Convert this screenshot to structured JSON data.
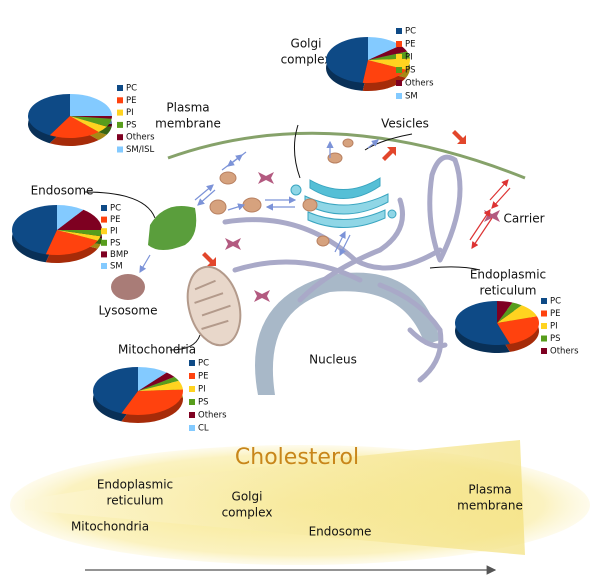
{
  "labels": [
    {
      "lines": [
        "Plasma",
        "membrane"
      ]
    },
    {
      "lines": [
        "Golgi",
        "complex"
      ]
    },
    {
      "lines": [
        "Vesicles"
      ]
    },
    {
      "lines": [
        "Endosome"
      ]
    },
    {
      "lines": [
        "Carrier"
      ]
    },
    {
      "lines": [
        "Endoplasmic",
        "reticulum"
      ]
    },
    {
      "lines": [
        "Lysosome"
      ]
    },
    {
      "lines": [
        "Mitochondria"
      ]
    },
    {
      "lines": [
        "Nucleus"
      ]
    }
  ],
  "pies": [
    {
      "series": [
        {
          "name": "PC",
          "color": "#0e4a86",
          "value": 42
        },
        {
          "name": "PE",
          "color": "#ff420e",
          "value": 20
        },
        {
          "name": "PI",
          "color": "#ffd320",
          "value": 5
        },
        {
          "name": "PS",
          "color": "#579d1c",
          "value": 6
        },
        {
          "name": "Others",
          "color": "#7e0021",
          "value": 2
        },
        {
          "name": "SM/ISL",
          "color": "#83caff",
          "value": 25
        }
      ]
    },
    {
      "series": [
        {
          "name": "PC",
          "color": "#0e4a86",
          "value": 48
        },
        {
          "name": "PE",
          "color": "#ff420e",
          "value": 20
        },
        {
          "name": "PI",
          "color": "#ffd320",
          "value": 8
        },
        {
          "name": "PS",
          "color": "#579d1c",
          "value": 5
        },
        {
          "name": "Others",
          "color": "#7e0021",
          "value": 5
        },
        {
          "name": "SM",
          "color": "#83caff",
          "value": 14
        }
      ]
    },
    {
      "series": [
        {
          "name": "PC",
          "color": "#0e4a86",
          "value": 46
        },
        {
          "name": "PE",
          "color": "#ff420e",
          "value": 22
        },
        {
          "name": "PI",
          "color": "#ffd320",
          "value": 3
        },
        {
          "name": "PS",
          "color": "#579d1c",
          "value": 4
        },
        {
          "name": "BMP",
          "color": "#7e0021",
          "value": 15
        },
        {
          "name": "SM",
          "color": "#83caff",
          "value": 10
        }
      ]
    },
    {
      "series": [
        {
          "name": "PC",
          "color": "#0e4a86",
          "value": 55
        },
        {
          "name": "PE",
          "color": "#ff420e",
          "value": 25
        },
        {
          "name": "PI",
          "color": "#ffd320",
          "value": 10
        },
        {
          "name": "PS",
          "color": "#579d1c",
          "value": 4
        },
        {
          "name": "Others",
          "color": "#7e0021",
          "value": 6
        }
      ]
    },
    {
      "series": [
        {
          "name": "PC",
          "color": "#0e4a86",
          "value": 44
        },
        {
          "name": "PE",
          "color": "#ff420e",
          "value": 32
        },
        {
          "name": "PI",
          "color": "#ffd320",
          "value": 6
        },
        {
          "name": "PS",
          "color": "#579d1c",
          "value": 3
        },
        {
          "name": "Others",
          "color": "#7e0021",
          "value": 4
        },
        {
          "name": "CL",
          "color": "#83caff",
          "value": 11
        }
      ]
    }
  ],
  "cholesterol": {
    "title": "Cholesterol",
    "labels": [
      {
        "lines": [
          "Endoplasmic",
          "reticulum"
        ]
      },
      {
        "lines": [
          "Golgi",
          "complex"
        ]
      },
      {
        "lines": [
          "Plasma",
          "membrane"
        ]
      },
      {
        "lines": [
          "Mitochondria"
        ]
      },
      {
        "lines": [
          "Endosome"
        ]
      }
    ]
  }
}
